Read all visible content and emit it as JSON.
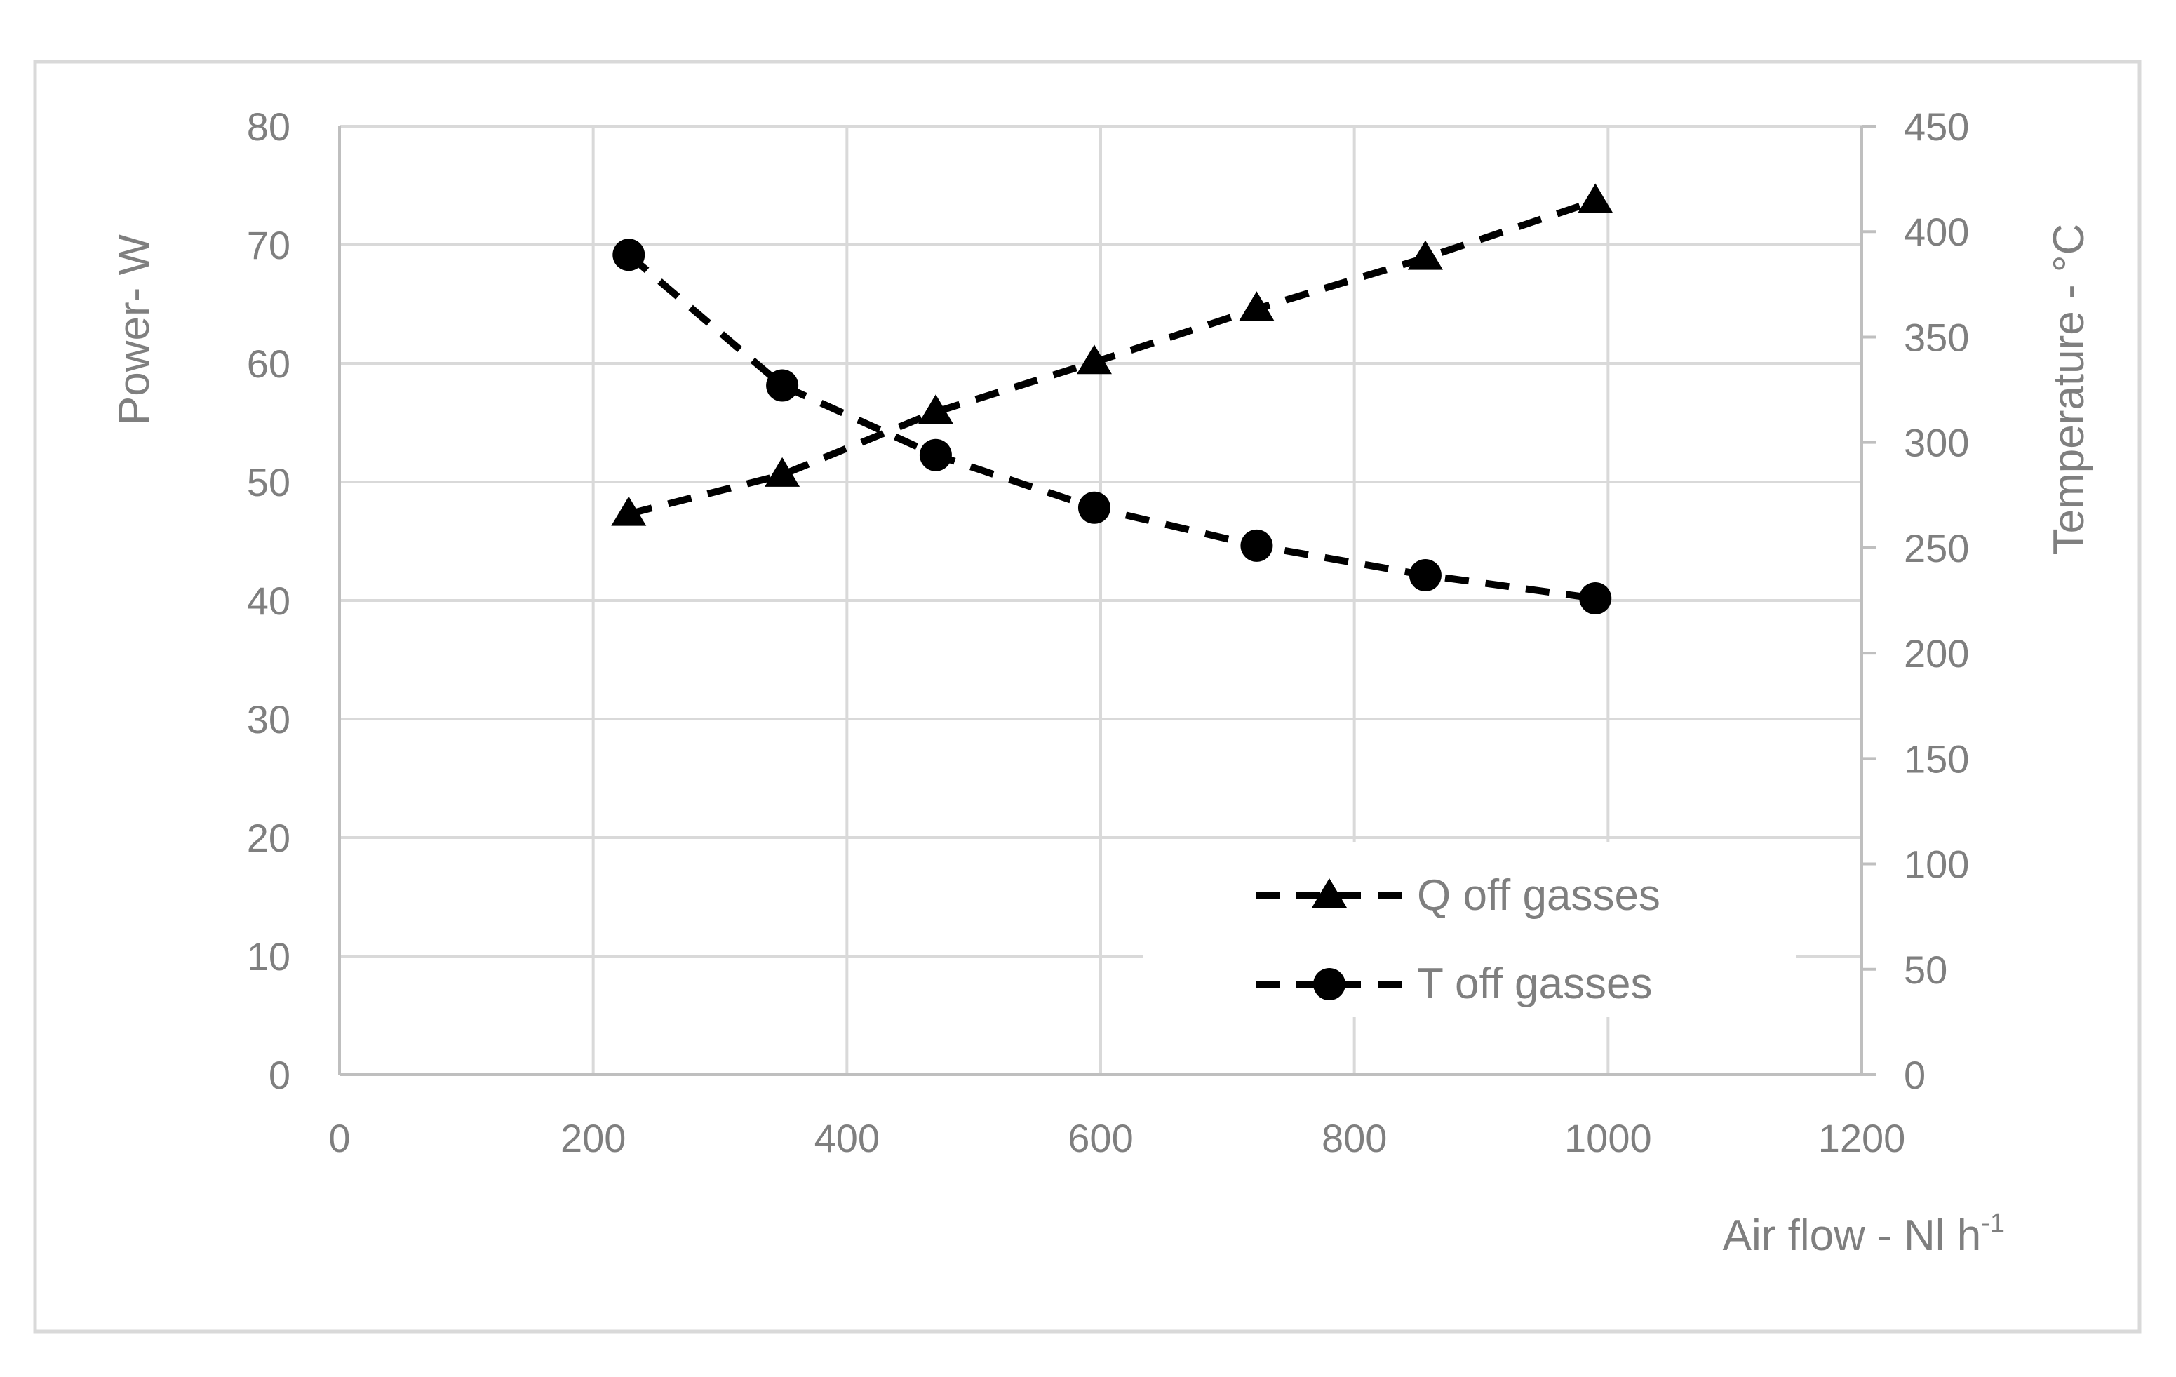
{
  "chart_data": {
    "type": "line",
    "title": "",
    "xlabel": "Air flow - Nl h",
    "xlabel_superscript": "-1",
    "ylabel_left": "Power- W",
    "ylabel_right": "Temperature - °C",
    "xlim": [
      0,
      1200
    ],
    "ylim_left": [
      0,
      80
    ],
    "ylim_right": [
      0,
      450
    ],
    "x_ticks": [
      "0",
      "200",
      "400",
      "600",
      "800",
      "1000",
      "1200"
    ],
    "y_left_ticks": [
      "0",
      "10",
      "20",
      "30",
      "40",
      "50",
      "60",
      "70",
      "80"
    ],
    "y_right_ticks": [
      "0",
      "50",
      "100",
      "150",
      "200",
      "250",
      "300",
      "350",
      "400",
      "450"
    ],
    "grid": true,
    "legend_position": "bottom-right",
    "series": [
      {
        "name": "Q off gasses",
        "axis": "left",
        "marker": "triangle",
        "line_style": "dashed",
        "color": "#000000",
        "x": [
          228,
          349,
          470,
          595,
          723,
          856,
          990
        ],
        "y": [
          47.3,
          50.6,
          55.9,
          60.1,
          64.6,
          68.9,
          73.7
        ]
      },
      {
        "name": "T off gasses",
        "axis": "right",
        "marker": "circle",
        "line_style": "dashed",
        "color": "#000000",
        "x": [
          228,
          349,
          470,
          595,
          723,
          856,
          990
        ],
        "y": [
          389,
          327,
          294,
          269,
          251,
          237,
          226
        ]
      }
    ]
  },
  "colors": {
    "frame_border": "#d9d9d9",
    "gridline": "#d9d9d9",
    "axis_line": "#bfbfbf",
    "label_text": "#7f7f7f",
    "series_color": "#000000"
  }
}
